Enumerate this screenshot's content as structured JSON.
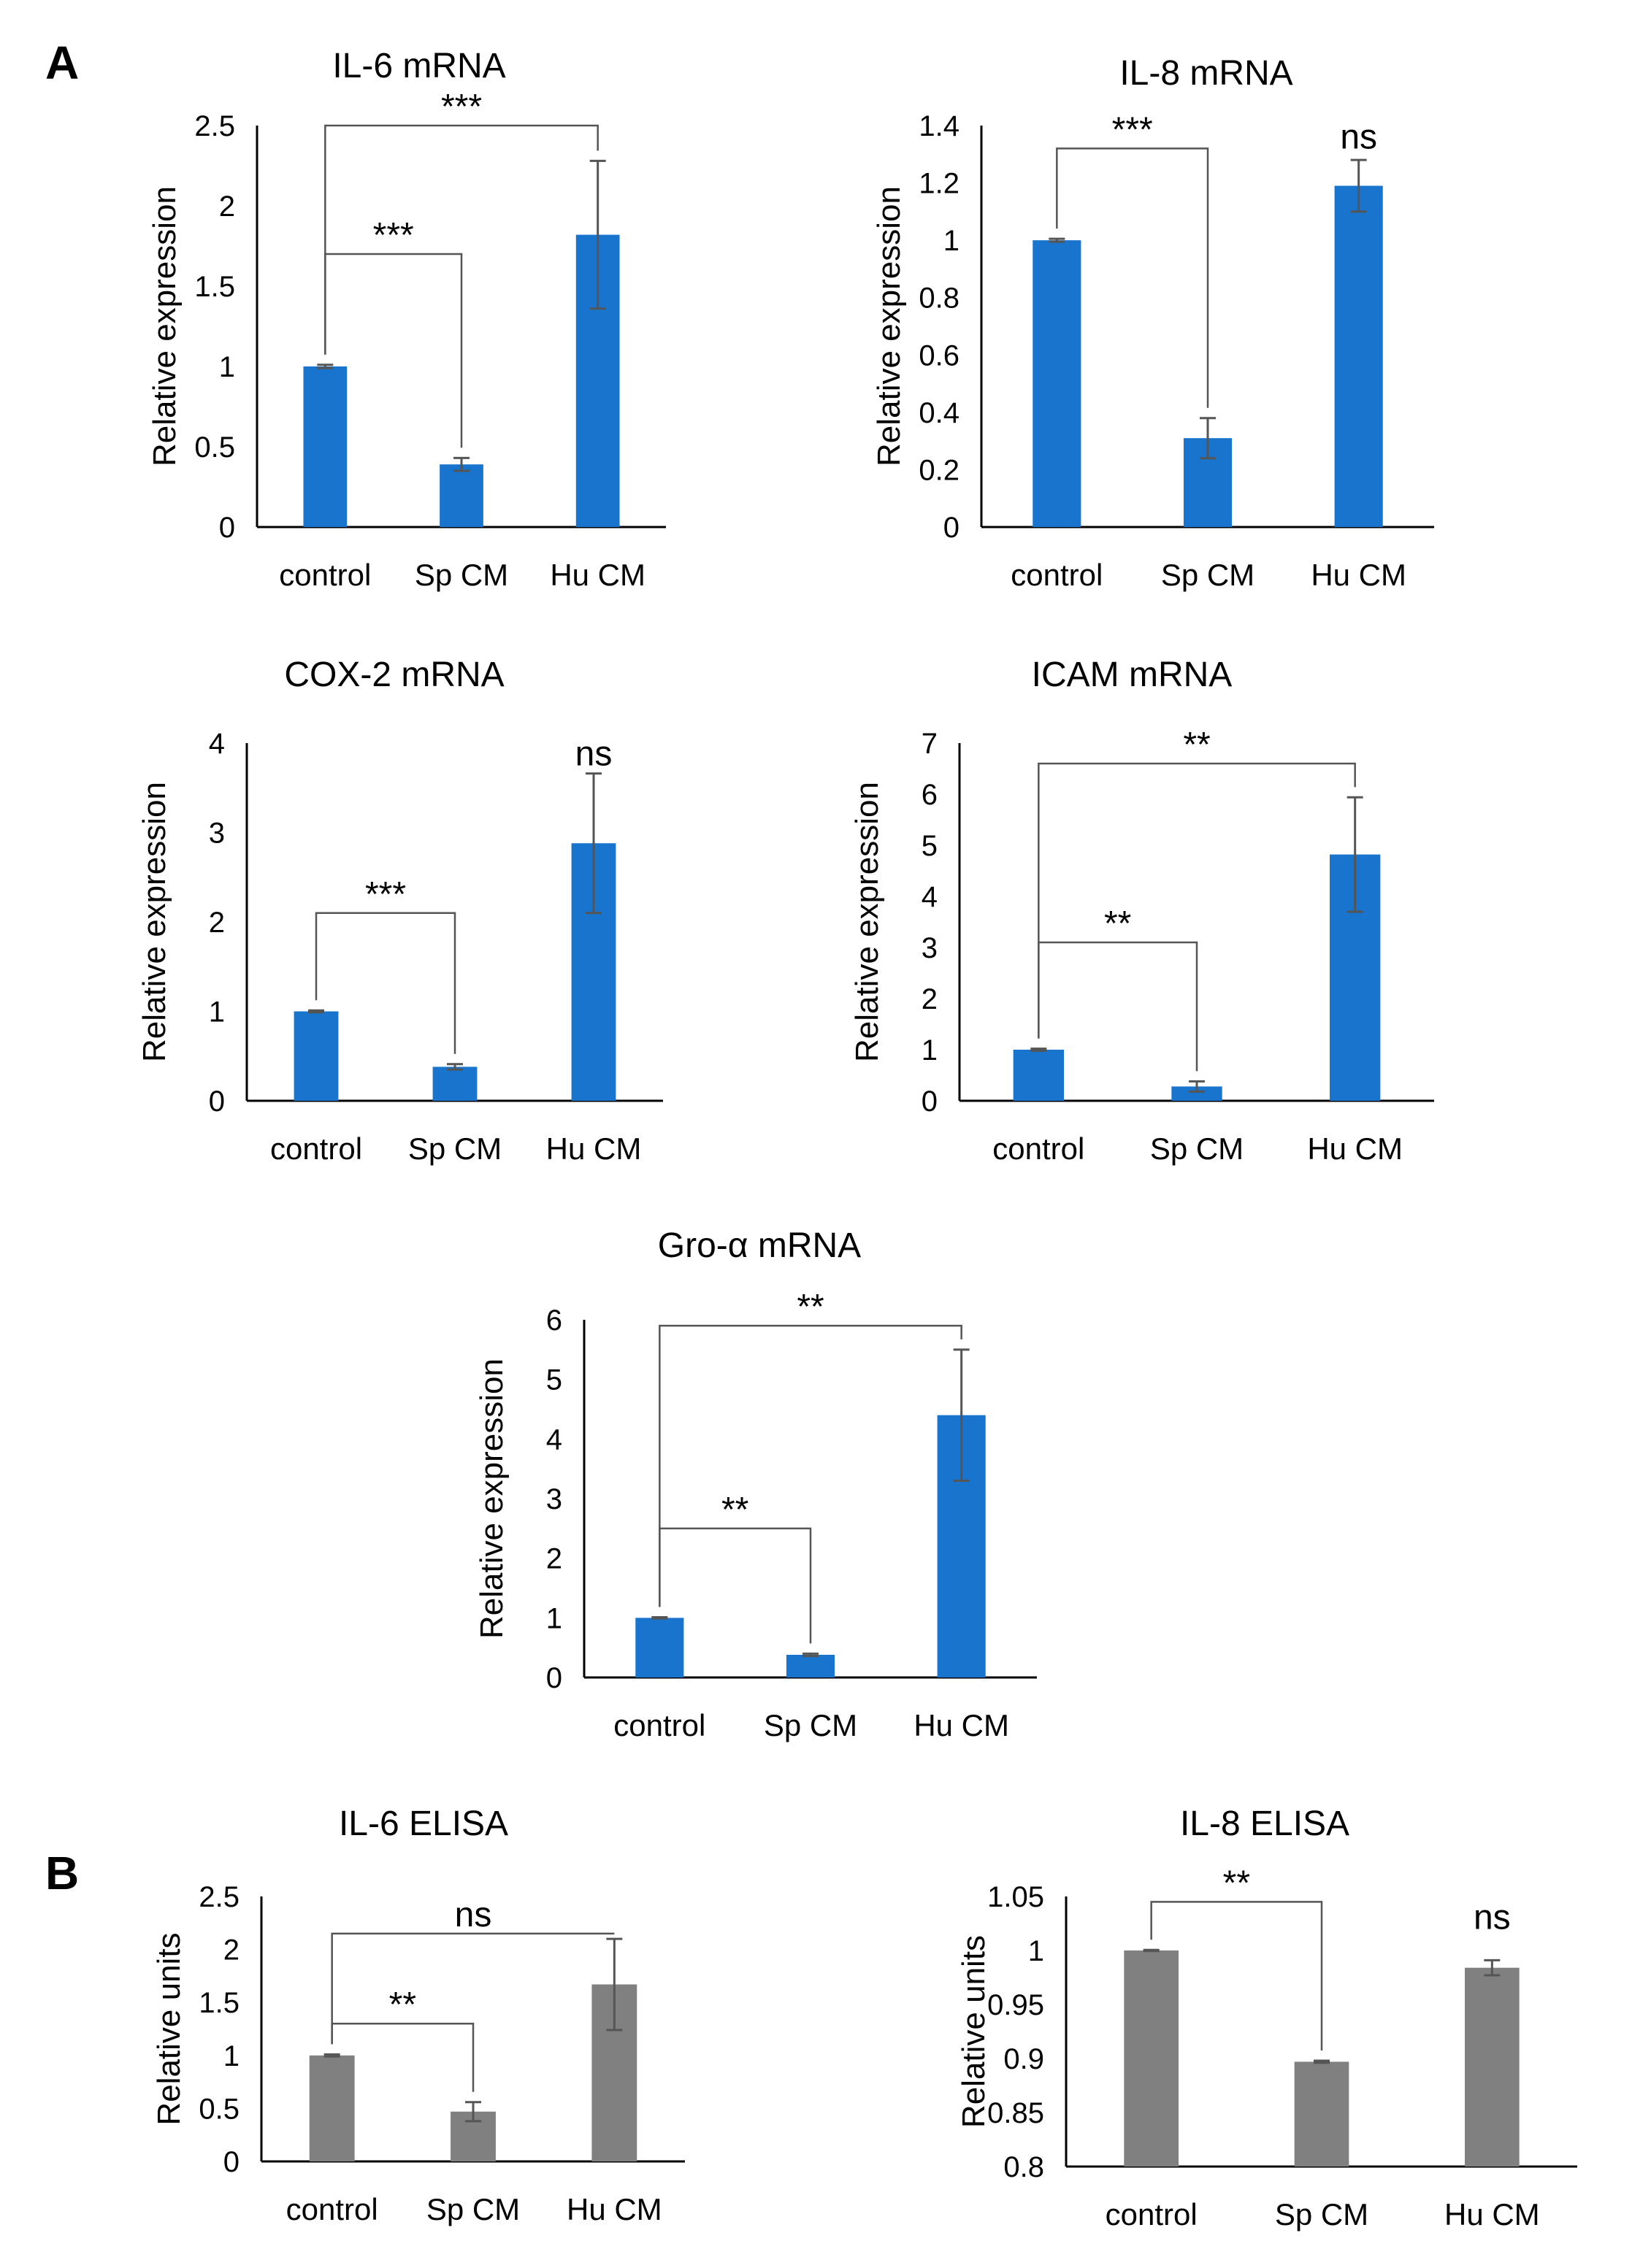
{
  "panels": [
    {
      "letter": "A",
      "chart_index": 0
    },
    {
      "letter": "B",
      "chart_index": 5
    }
  ],
  "colors": {
    "mrna_bar": "#1874cd",
    "elisa_bar": "#808080",
    "error": "#555555",
    "axis": "#000000"
  },
  "chart_data": [
    {
      "id": "il6_mrna",
      "type": "bar",
      "panel": "A",
      "title": "IL-6 mRNA",
      "xlabel": "",
      "ylabel": "Relative expression",
      "categories": [
        "control",
        "Sp CM",
        "Hu CM"
      ],
      "values": [
        1.0,
        0.39,
        1.82
      ],
      "errors": [
        0.01,
        0.04,
        0.46
      ],
      "ylim": [
        0,
        2.5
      ],
      "yticks": [
        "0",
        "0.5",
        "1",
        "1.5",
        "2",
        "2.5"
      ],
      "bar_color": "#1874cd",
      "significance": [
        {
          "from": 0,
          "to": 1,
          "label": "***",
          "y": 1.7
        },
        {
          "from": 0,
          "to": 2,
          "label": "***",
          "y": 2.5
        }
      ]
    },
    {
      "id": "il8_mrna",
      "type": "bar",
      "panel": "A",
      "title": "IL-8 mRNA",
      "xlabel": "",
      "ylabel": "Relative expression",
      "categories": [
        "control",
        "Sp CM",
        "Hu CM"
      ],
      "values": [
        1.0,
        0.31,
        1.19
      ],
      "errors": [
        0.005,
        0.07,
        0.09
      ],
      "ylim": [
        0,
        1.4
      ],
      "yticks": [
        "0",
        "0.2",
        "0.4",
        "0.6",
        "0.8",
        "1",
        "1.2",
        "1.4"
      ],
      "bar_color": "#1874cd",
      "significance": [
        {
          "from": 0,
          "to": 1,
          "label": "***",
          "y": 1.32
        },
        {
          "to": 2,
          "label": "ns",
          "y": 1.32
        }
      ]
    },
    {
      "id": "cox2_mrna",
      "type": "bar",
      "panel": "A",
      "title": "COX-2 mRNA",
      "xlabel": "",
      "ylabel": "Relative expression",
      "categories": [
        "control",
        "Sp CM",
        "Hu CM"
      ],
      "values": [
        1.0,
        0.38,
        2.88
      ],
      "errors": [
        0.01,
        0.03,
        0.78
      ],
      "ylim": [
        0,
        4
      ],
      "yticks": [
        "0",
        "1",
        "2",
        "3",
        "4"
      ],
      "bar_color": "#1874cd",
      "significance": [
        {
          "from": 0,
          "to": 1,
          "label": "***",
          "y": 2.1
        },
        {
          "to": 2,
          "label": "ns",
          "y": 3.75
        }
      ]
    },
    {
      "id": "icam_mrna",
      "type": "bar",
      "panel": "A",
      "title": "ICAM mRNA",
      "xlabel": "",
      "ylabel": "Relative expression",
      "categories": [
        "control",
        "Sp CM",
        "Hu CM"
      ],
      "values": [
        1.0,
        0.28,
        4.82
      ],
      "errors": [
        0.02,
        0.1,
        1.12
      ],
      "ylim": [
        0,
        7
      ],
      "yticks": [
        "0",
        "1",
        "2",
        "3",
        "4",
        "5",
        "6",
        "7"
      ],
      "bar_color": "#1874cd",
      "significance": [
        {
          "from": 0,
          "to": 1,
          "label": "**",
          "y": 3.1
        },
        {
          "from": 0,
          "to": 2,
          "label": "**",
          "y": 6.6
        }
      ]
    },
    {
      "id": "groa_mrna",
      "type": "bar",
      "panel": "A",
      "title": "Gro-α mRNA",
      "xlabel": "",
      "ylabel": "Relative expression",
      "categories": [
        "control",
        "Sp CM",
        "Hu CM"
      ],
      "values": [
        1.0,
        0.38,
        4.4
      ],
      "errors": [
        0.01,
        0.02,
        1.1
      ],
      "ylim": [
        0,
        6
      ],
      "yticks": [
        "0",
        "1",
        "2",
        "3",
        "4",
        "5",
        "6"
      ],
      "bar_color": "#1874cd",
      "significance": [
        {
          "from": 0,
          "to": 1,
          "label": "**",
          "y": 2.5
        },
        {
          "from": 0,
          "to": 2,
          "label": "**",
          "y": 5.9
        }
      ]
    },
    {
      "id": "il6_elisa",
      "type": "bar",
      "panel": "B",
      "title": "IL-6 ELISA",
      "xlabel": "",
      "ylabel": "Relative units",
      "categories": [
        "control",
        "Sp CM",
        "Hu CM"
      ],
      "values": [
        1.0,
        0.47,
        1.67
      ],
      "errors": [
        0.01,
        0.09,
        0.43
      ],
      "ylim": [
        0,
        2.5
      ],
      "yticks": [
        "0",
        "0.5",
        "1",
        "1.5",
        "2",
        "2.5"
      ],
      "bar_color": "#808080",
      "significance": [
        {
          "from": 0,
          "to": 1,
          "label": "**",
          "y": 1.3
        },
        {
          "from": 0,
          "to": 2,
          "label": "ns",
          "y": 2.15
        }
      ]
    },
    {
      "id": "il8_elisa",
      "type": "bar",
      "panel": "B",
      "title": "IL-8 ELISA",
      "xlabel": "",
      "ylabel": "Relative units",
      "categories": [
        "control",
        "Sp CM",
        "Hu CM"
      ],
      "values": [
        1.0,
        0.897,
        0.984
      ],
      "errors": [
        0.0005,
        0.001,
        0.007
      ],
      "ylim": [
        0.8,
        1.05
      ],
      "yticks": [
        "0.8",
        "0.85",
        "0.9",
        "0.95",
        "1",
        "1.05"
      ],
      "bar_color": "#808080",
      "significance": [
        {
          "from": 0,
          "to": 1,
          "label": "**",
          "y": 1.045
        },
        {
          "to": 2,
          "label": "ns",
          "y": 1.02
        }
      ]
    }
  ]
}
